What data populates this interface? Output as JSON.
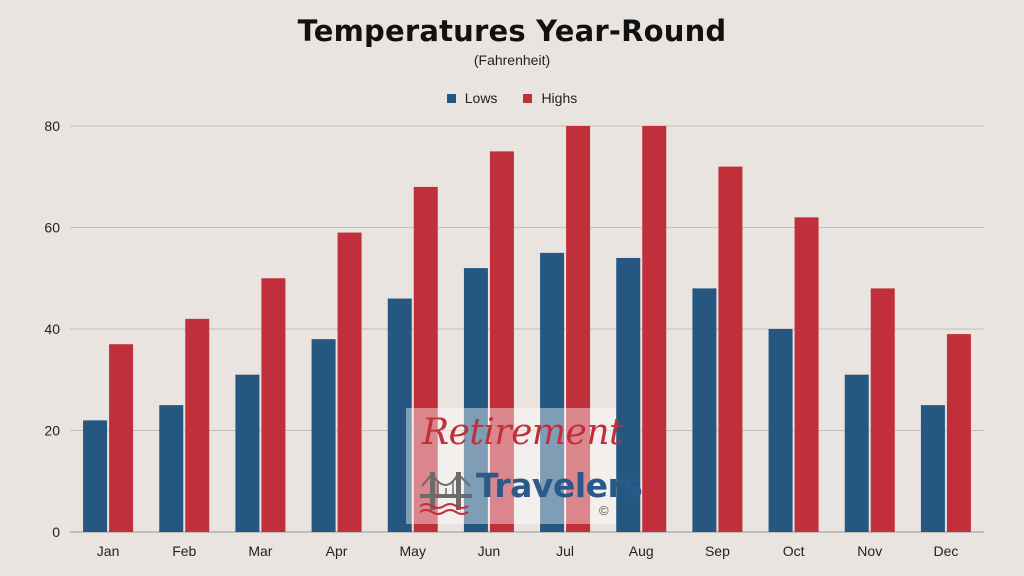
{
  "chart_data": {
    "type": "bar",
    "title": "Temperatures Year-Round",
    "subtitle": "(Fahrenheit)",
    "categories": [
      "Jan",
      "Feb",
      "Mar",
      "Apr",
      "May",
      "Jun",
      "Jul",
      "Aug",
      "Sep",
      "Oct",
      "Nov",
      "Dec"
    ],
    "series": [
      {
        "name": "Lows",
        "color": "#255781",
        "values": [
          22,
          25,
          31,
          38,
          46,
          52,
          55,
          54,
          48,
          40,
          31,
          25
        ]
      },
      {
        "name": "Highs",
        "color": "#c1303a",
        "values": [
          37,
          42,
          50,
          59,
          68,
          75,
          80,
          80,
          72,
          62,
          48,
          39
        ]
      }
    ],
    "ylim": [
      0,
      80
    ],
    "yticks": [
      0,
      20,
      40,
      60,
      80
    ],
    "grid": true,
    "legend_position": "top-center",
    "xlabel": "",
    "ylabel": ""
  },
  "watermark": {
    "line1": "Retirement",
    "line2": "Travelers",
    "copyright": "©"
  }
}
